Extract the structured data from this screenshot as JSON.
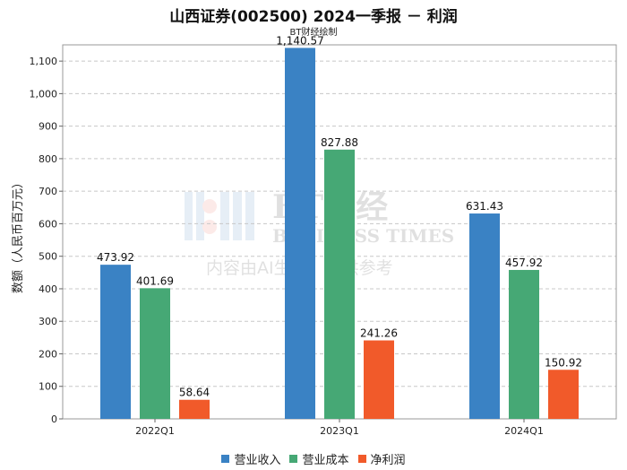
{
  "header": {
    "title": "山西证券(002500) 2024一季报 － 利润",
    "subtitle": "BT财经绘制"
  },
  "watermark": {
    "brand": "BT财经",
    "brand_en": "BUSINESS TIMES",
    "notice": "内容由AI生成，仅供参考"
  },
  "chart_data": {
    "type": "bar",
    "title": "山西证券(002500) 2024一季报 － 利润",
    "subtitle": "BT财经绘制",
    "xlabel": "",
    "ylabel": "数额（人民币百万元）",
    "categories": [
      "2022Q1",
      "2023Q1",
      "2024Q1"
    ],
    "ylim": [
      0,
      1150
    ],
    "yticks": [
      0,
      100,
      200,
      300,
      400,
      500,
      600,
      700,
      800,
      900,
      1000,
      1100
    ],
    "ytick_labels": [
      "0",
      "100",
      "200",
      "300",
      "400",
      "500",
      "600",
      "700",
      "800",
      "900",
      "1,000",
      "1,100"
    ],
    "grid": true,
    "legend_position": "bottom",
    "series": [
      {
        "name": "营业收入",
        "color": "#3a82c4",
        "values": [
          473.92,
          1140.57,
          631.43
        ],
        "labels": [
          "473.92",
          "1,140.57",
          "631.43"
        ]
      },
      {
        "name": "营业成本",
        "color": "#46a875",
        "values": [
          401.69,
          827.88,
          457.92
        ],
        "labels": [
          "401.69",
          "827.88",
          "457.92"
        ]
      },
      {
        "name": "净利润",
        "color": "#f15a2a",
        "values": [
          58.64,
          241.26,
          150.92
        ],
        "labels": [
          "58.64",
          "241.26",
          "150.92"
        ]
      }
    ]
  }
}
